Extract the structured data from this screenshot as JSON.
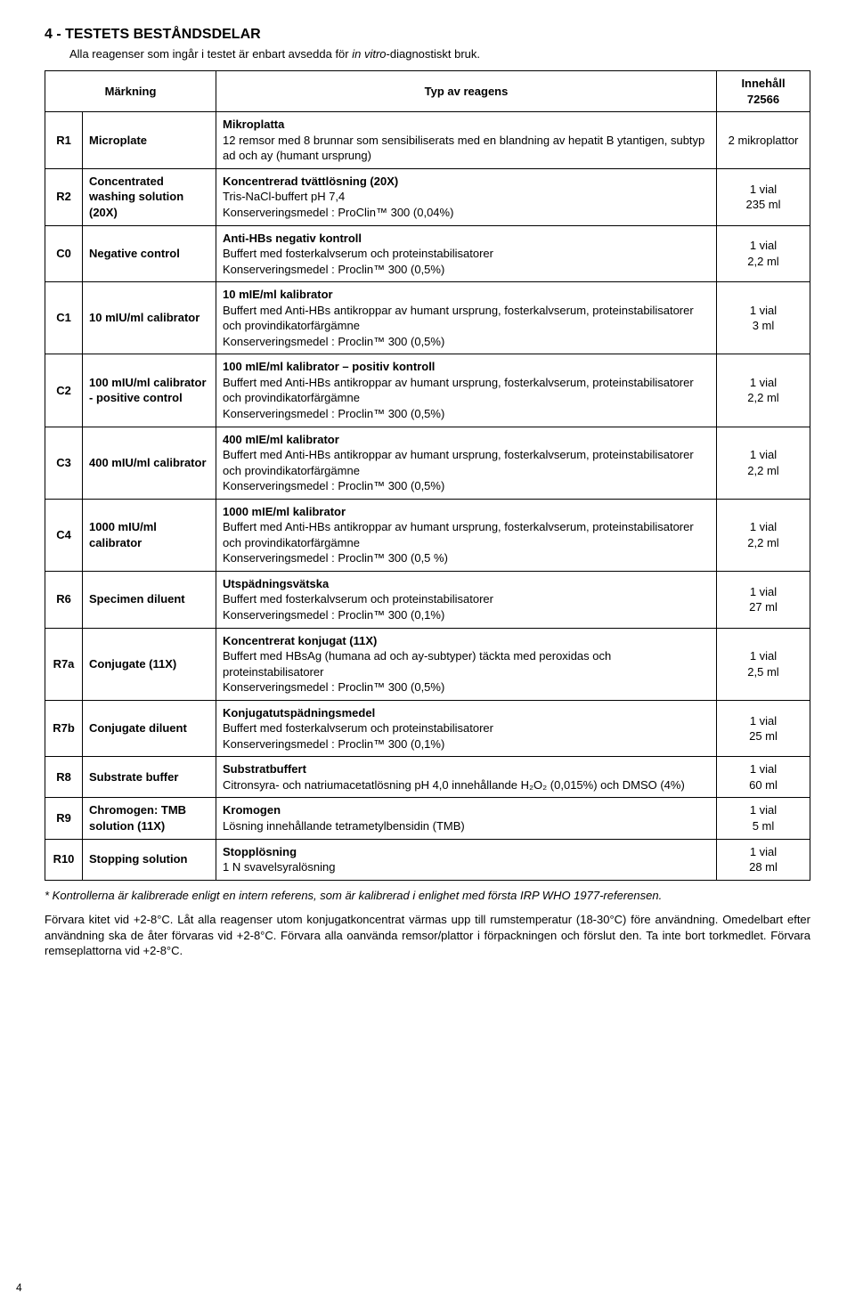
{
  "section": {
    "number_title": "4 - TESTETS BESTÅNDSDELAR",
    "subtitle_pre": "Alla reagenser som ingår i testet är enbart avsedda för ",
    "subtitle_italic": "in vitro",
    "subtitle_post": "-diagnostiskt bruk."
  },
  "headers": {
    "marking": "Märkning",
    "type": "Typ av reagens",
    "content": "Innehåll\n72566"
  },
  "rows": [
    {
      "code": "R1",
      "mark": "Microplate",
      "desc_title": "Mikroplatta",
      "desc_body": "12 remsor med 8 brunnar som sensibiliserats med en blandning av hepatit B ytantigen, subtyp ad och ay (humant ursprung)",
      "qty": "2 mikroplattor"
    },
    {
      "code": "R2",
      "mark": "Concentrated washing solution (20X)",
      "desc_title": "Koncentrerad tvättlösning (20X)",
      "desc_body": "Tris-NaCl-buffert pH 7,4\nKonserveringsmedel : ProClin™ 300 (0,04%)",
      "qty": "1 vial\n235 ml"
    },
    {
      "code": "C0",
      "mark": "Negative control",
      "desc_title": "Anti-HBs negativ kontroll",
      "desc_body": "Buffert med fosterkalvserum och proteinstabilisatorer\nKonserveringsmedel : Proclin™ 300 (0,5%)",
      "qty": "1 vial\n2,2 ml"
    },
    {
      "code": "C1",
      "mark": "10 mIU/ml calibrator",
      "desc_title": "10 mIE/ml kalibrator",
      "desc_body": "Buffert med Anti-HBs antikroppar av humant ursprung, fosterkalvserum, proteinstabilisatorer och provindikatorfärgämne\nKonserveringsmedel : Proclin™ 300 (0,5%)",
      "qty": "1 vial\n3 ml"
    },
    {
      "code": "C2",
      "mark": "100 mIU/ml calibrator - positive control",
      "desc_title": "100 mIE/ml kalibrator – positiv kontroll",
      "desc_body": "Buffert med Anti-HBs antikroppar av humant ursprung, fosterkalvserum, proteinstabilisatorer och provindikatorfärgämne\nKonserveringsmedel : Proclin™ 300 (0,5%)",
      "qty": "1 vial\n2,2 ml"
    },
    {
      "code": "C3",
      "mark": "400 mIU/ml calibrator",
      "desc_title": "400 mIE/ml kalibrator",
      "desc_body": "Buffert med Anti-HBs antikroppar av humant ursprung, fosterkalvserum, proteinstabilisatorer och provindikatorfärgämne\nKonserveringsmedel : Proclin™ 300 (0,5%)",
      "qty": "1 vial\n2,2 ml"
    },
    {
      "code": "C4",
      "mark": "1000 mIU/ml calibrator",
      "desc_title": "1000 mIE/ml kalibrator",
      "desc_body": "Buffert med Anti-HBs antikroppar av humant ursprung, fosterkalvserum, proteinstabilisatorer och provindikatorfärgämne\nKonserveringsmedel : Proclin™ 300 (0,5 %)",
      "qty": "1 vial\n2,2 ml"
    },
    {
      "code": "R6",
      "mark": "Specimen diluent",
      "desc_title": "Utspädningsvätska",
      "desc_body": "Buffert med fosterkalvserum och proteinstabilisatorer\nKonserveringsmedel : Proclin™ 300 (0,1%)",
      "qty": "1 vial\n27 ml"
    },
    {
      "code": "R7a",
      "mark": "Conjugate (11X)",
      "desc_title": "Koncentrerat konjugat (11X)",
      "desc_body": "Buffert med HBsAg (humana ad och ay-subtyper) täckta med peroxidas och proteinstabilisatorer\nKonserveringsmedel : Proclin™ 300 (0,5%)",
      "qty": "1 vial\n2,5 ml"
    },
    {
      "code": "R7b",
      "mark": "Conjugate diluent",
      "desc_title": "Konjugatutspädningsmedel",
      "desc_body": "Buffert med fosterkalvserum och proteinstabilisatorer\nKonserveringsmedel : Proclin™ 300 (0,1%)",
      "qty": "1 vial\n25 ml"
    },
    {
      "code": "R8",
      "mark": "Substrate buffer",
      "desc_title": "Substratbuffert",
      "desc_body": "Citronsyra- och natriumacetatlösning pH 4,0 innehållande H₂O₂ (0,015%) och DMSO (4%)",
      "qty": "1 vial\n60 ml"
    },
    {
      "code": "R9",
      "mark": "Chromogen: TMB solution (11X)",
      "desc_title": "Kromogen",
      "desc_body": "Lösning innehållande tetrametylbensidin (TMB)",
      "qty": "1 vial\n5 ml"
    },
    {
      "code": "R10",
      "mark": "Stopping solution",
      "desc_title": "Stopplösning",
      "desc_body": "1 N svavelsyralösning",
      "qty": "1 vial\n28 ml"
    }
  ],
  "footnote": "* Kontrollerna är kalibrerade enligt en intern referens, som är kalibrerad i enlighet med första IRP WHO 1977-referensen.",
  "storage_paragraph": "Förvara kitet vid +2-8°C. Låt alla reagenser utom konjugatkoncentrat värmas upp till rumstemperatur (18-30°C) före användning. Omedelbart efter användning ska de åter förvaras vid +2-8°C. Förvara alla oanvända remsor/plattor i förpackningen och förslut den. Ta inte bort torkmedlet. Förvara remseplattorna vid +2-8°C.",
  "page_number": "4"
}
